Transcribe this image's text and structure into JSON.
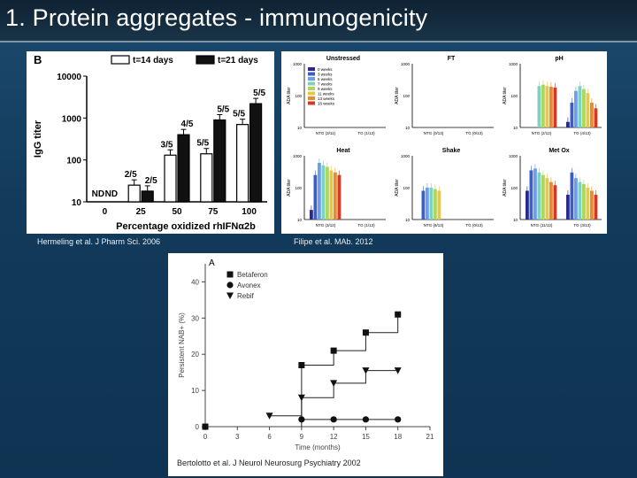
{
  "slide": {
    "title": "1. Protein aggregates - immunogenicity"
  },
  "captions": {
    "left": "Hermeling et al. J Pharm Sci. 2006",
    "right": "Filipe et al. MAb. 2012",
    "bottom": "Bertolotto et al. J Neurol Neurosurg Psychiatry 2002"
  },
  "chart_data": [
    {
      "type": "bar",
      "panel_label": "B",
      "categories": [
        "0",
        "25",
        "50",
        "75",
        "100"
      ],
      "series": [
        {
          "name": "t=14 days",
          "values": [
            null,
            25,
            130,
            140,
            700
          ],
          "color": "#ffffff"
        },
        {
          "name": "t=21 days",
          "values": [
            null,
            18,
            400,
            900,
            2200
          ],
          "color": "#111111"
        }
      ],
      "data_labels": {
        "t=14 days": [
          "ND",
          "2/5",
          "3/5",
          "5/5",
          "5/5"
        ],
        "t=21 days": [
          "ND",
          "2/5",
          "4/5",
          "5/5",
          "5/5"
        ]
      },
      "xlabel": "Percentage oxidized rhIFNα2b",
      "ylabel": "IgG titer",
      "yscale": "log",
      "ylim": [
        10,
        10000
      ],
      "yticks": [
        "10",
        "100",
        "1000",
        "10000"
      ],
      "legend_position": "top"
    },
    {
      "type": "bar",
      "yscale": "log",
      "ylabel": "ADA titer",
      "ylim": [
        10,
        1000
      ],
      "yticks": [
        "10",
        "100",
        "1000"
      ],
      "legend": [
        "0 weeks",
        "3 weeks",
        "5 weeks",
        "7 weeks",
        "9 weeks",
        "11 weeks",
        "13 weeks",
        "16 weeks"
      ],
      "legend_colors": [
        "#2a2a8a",
        "#3a5fcd",
        "#6aa0e8",
        "#7fd0c0",
        "#a8d860",
        "#e8c840",
        "#e88a30",
        "#d03a2a"
      ],
      "panels": [
        {
          "title": "Unstressed",
          "groups": [
            "NTG (3/11)",
            "TG (1/13)"
          ],
          "values": [
            [
              0,
              0,
              0,
              0,
              0,
              0,
              0,
              0
            ],
            [
              0,
              0,
              0,
              0,
              0,
              0,
              0,
              0
            ]
          ]
        },
        {
          "title": "FT",
          "groups": [
            "NTG (0/13)",
            "TG (0/13)"
          ],
          "values": [
            [
              0,
              0,
              0,
              0,
              0,
              0,
              0,
              0
            ],
            [
              0,
              0,
              0,
              0,
              0,
              0,
              0,
              0
            ]
          ]
        },
        {
          "title": "pH",
          "groups": [
            "NTG (2/12)",
            "TG (4/13)"
          ],
          "values": [
            [
              0,
              0,
              0,
              200,
              220,
              200,
              190,
              180
            ],
            [
              15,
              60,
              140,
              200,
              160,
              120,
              60,
              40
            ]
          ]
        },
        {
          "title": "Heat",
          "groups": [
            "NTG (3/12)",
            "TG (1/13)"
          ],
          "values": [
            [
              20,
              250,
              600,
              500,
              450,
              350,
              300,
              250
            ],
            [
              0,
              0,
              0,
              0,
              0,
              0,
              0,
              0
            ]
          ]
        },
        {
          "title": "Shake",
          "groups": [
            "NTG (6/13)",
            "TG (0/13)"
          ],
          "values": [
            [
              0,
              80,
              100,
              100,
              90,
              80,
              0,
              0
            ],
            [
              0,
              0,
              0,
              0,
              0,
              0,
              0,
              0
            ]
          ]
        },
        {
          "title": "Met Ox",
          "groups": [
            "NTG (11/12)",
            "TG (3/13)"
          ],
          "values": [
            [
              80,
              350,
              400,
              300,
              250,
              200,
              150,
              120
            ],
            [
              60,
              300,
              200,
              150,
              130,
              100,
              80,
              60
            ]
          ]
        }
      ]
    },
    {
      "type": "line",
      "panel_label": "A",
      "xlabel": "Time (months)",
      "ylabel": "Persistent NAB+ (%)",
      "xlim": [
        0,
        21
      ],
      "ylim": [
        0,
        45
      ],
      "xticks": [
        "0",
        "3",
        "6",
        "9",
        "12",
        "15",
        "18",
        "21"
      ],
      "yticks": [
        "0",
        "10",
        "20",
        "30",
        "40"
      ],
      "series": [
        {
          "name": "Betaferon",
          "marker": "square",
          "x": [
            0,
            9,
            12,
            15,
            18
          ],
          "y": [
            0,
            17,
            21,
            26,
            31
          ]
        },
        {
          "name": "Avonex",
          "marker": "circle",
          "x": [
            9,
            12,
            15,
            18
          ],
          "y": [
            2,
            2,
            2,
            2
          ]
        },
        {
          "name": "Rebif",
          "marker": "triangle",
          "x": [
            6,
            9,
            12,
            15,
            18
          ],
          "y": [
            3,
            8,
            12,
            15.5,
            15.5
          ]
        }
      ],
      "legend_position": "top-left"
    }
  ]
}
